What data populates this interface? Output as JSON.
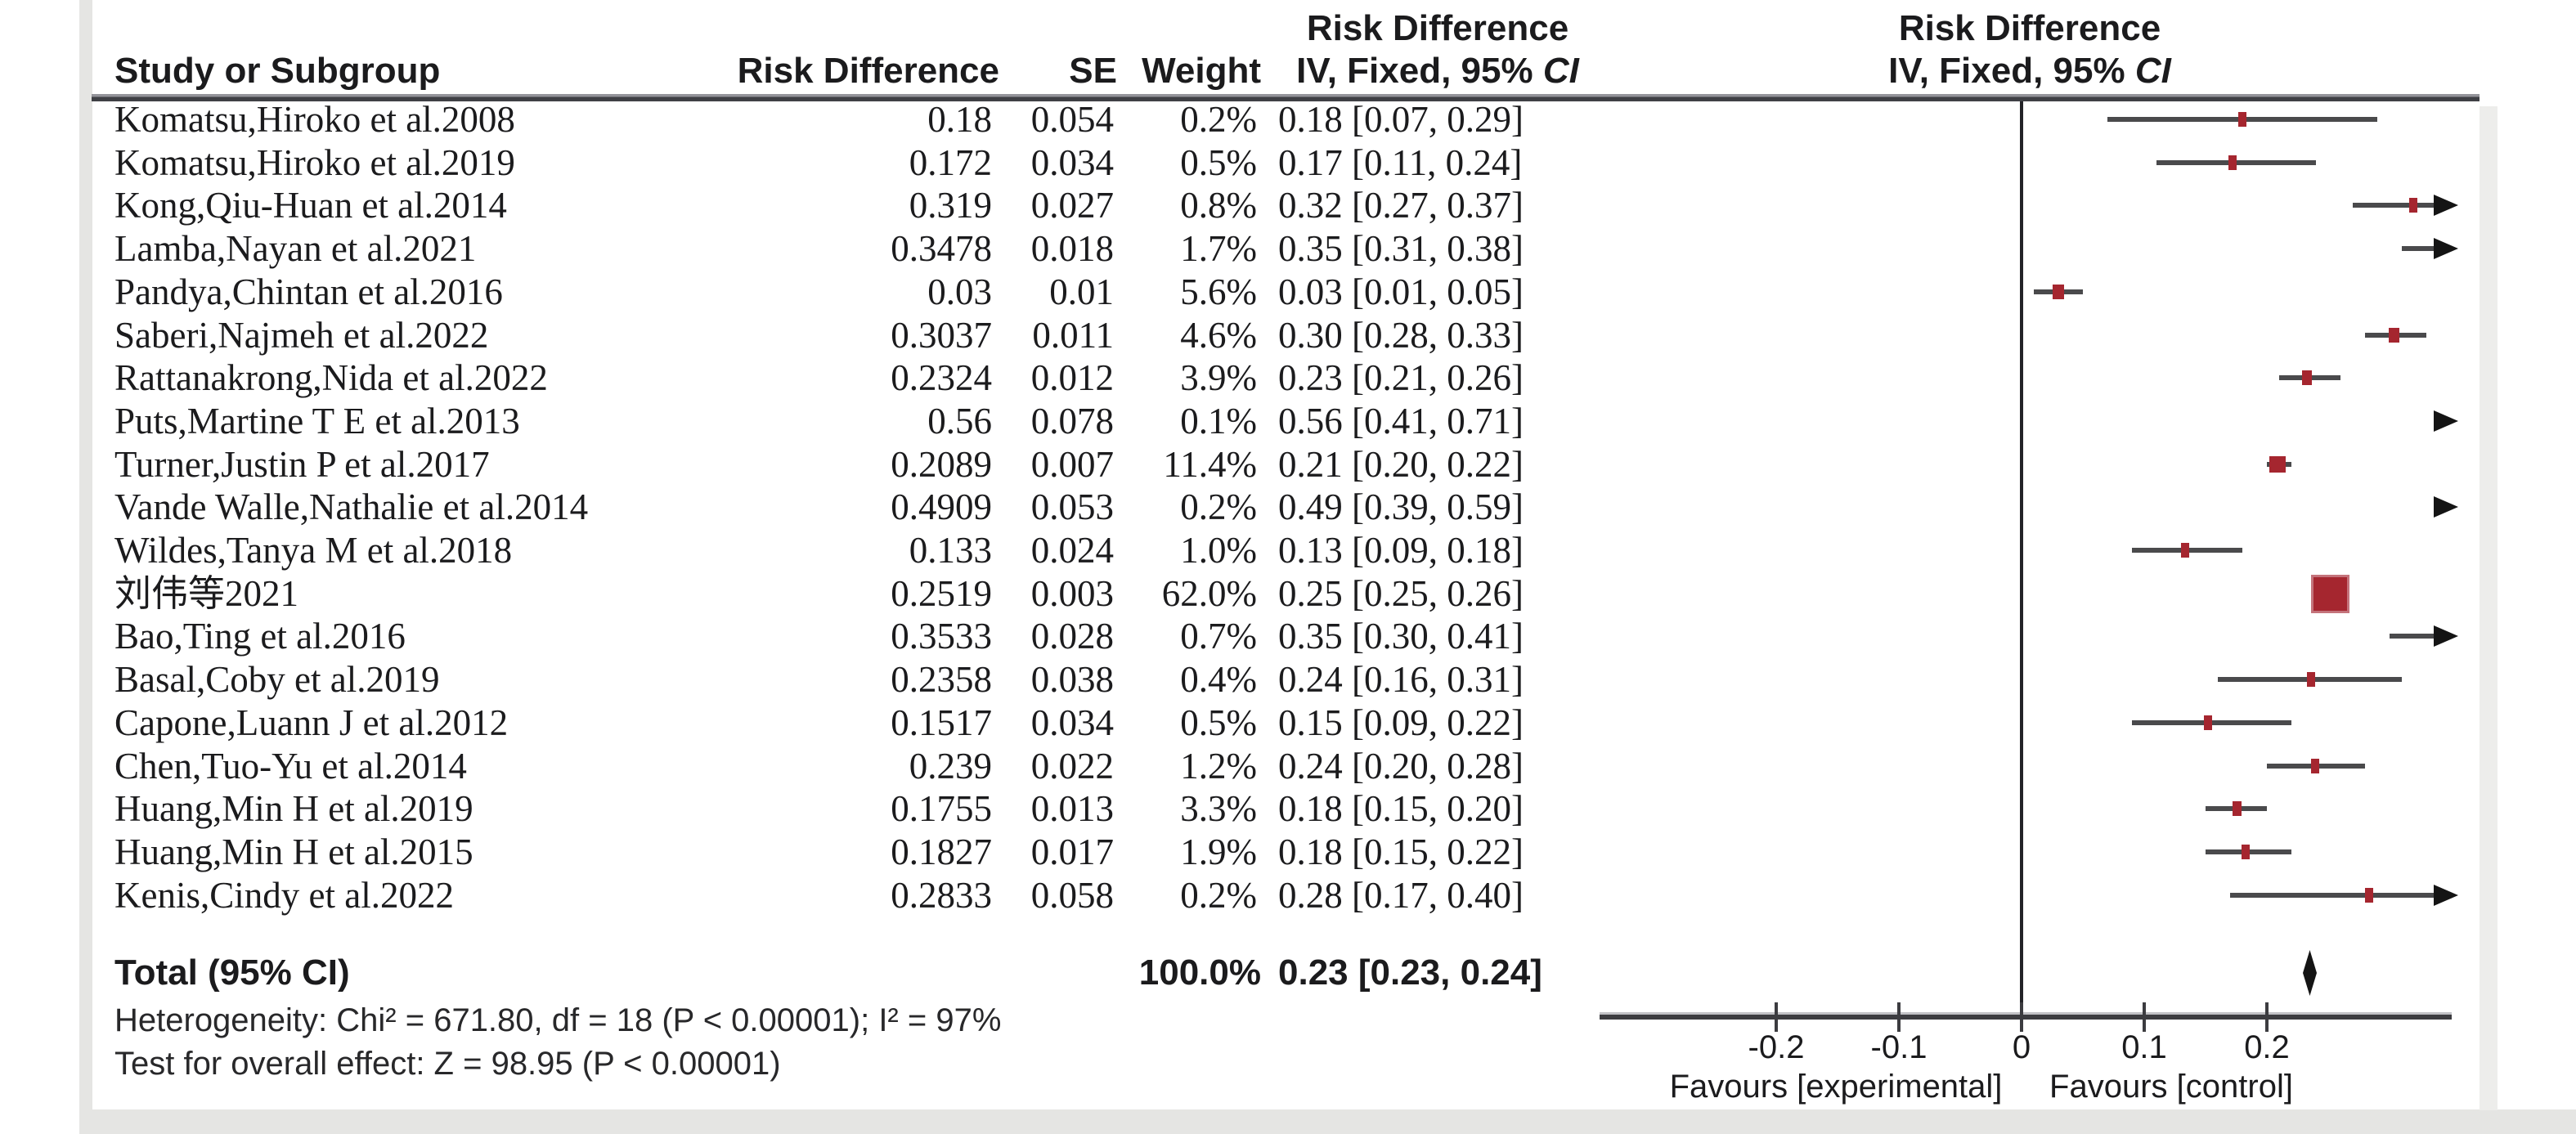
{
  "figure": {
    "columns": {
      "study": "Study or Subgroup",
      "risk_difference": "Risk Difference",
      "se": "SE",
      "weight": "Weight"
    },
    "effect_header": {
      "line1": "Risk Difference",
      "model_prefix": "IV, Fixed, 95% ",
      "ci": "CI"
    },
    "total_label": "Total (95% CI)",
    "heterogeneity": "Heterogeneity: Chi² = 671.80, df = 18 (P < 0.00001); I² = 97%",
    "overall_effect": "Test for overall effect: Z = 98.95 (P < 0.00001)",
    "favours_left": "Favours [experimental]",
    "favours_right": "Favours [control]"
  },
  "chart_data": {
    "type": "forest",
    "title": "Risk Difference, IV, Fixed, 95% CI",
    "x_axis": {
      "tick_values": [
        -0.2,
        -0.1,
        0,
        0.1,
        0.2
      ],
      "tick_labels": [
        "-0.2",
        "-0.1",
        "0",
        "0.1",
        "0.2"
      ],
      "visible_range": [
        -0.34,
        0.35
      ],
      "grid": false
    },
    "legend_position": "none",
    "studies": [
      {
        "label": "Komatsu,Hiroko et al.2008",
        "rd_text": "0.18",
        "se_text": "0.054",
        "weight_text": "0.2%",
        "ci_text": "0.18 [0.07, 0.29]",
        "weight": 0.2,
        "est": 0.18,
        "lo": 0.07,
        "hi": 0.29
      },
      {
        "label": "Komatsu,Hiroko et al.2019",
        "rd_text": "0.172",
        "se_text": "0.034",
        "weight_text": "0.5%",
        "ci_text": "0.17 [0.11, 0.24]",
        "weight": 0.5,
        "est": 0.172,
        "lo": 0.11,
        "hi": 0.24
      },
      {
        "label": "Kong,Qiu-Huan et al.2014",
        "rd_text": "0.319",
        "se_text": "0.027",
        "weight_text": "0.8%",
        "ci_text": "0.32 [0.27, 0.37]",
        "weight": 0.8,
        "est": 0.319,
        "lo": 0.27,
        "hi": 0.37
      },
      {
        "label": "Lamba,Nayan et al.2021",
        "rd_text": "0.3478",
        "se_text": "0.018",
        "weight_text": "1.7%",
        "ci_text": "0.35 [0.31, 0.38]",
        "weight": 1.7,
        "est": 0.3478,
        "lo": 0.31,
        "hi": 0.38
      },
      {
        "label": "Pandya,Chintan et al.2016",
        "rd_text": "0.03",
        "se_text": "0.01",
        "weight_text": "5.6%",
        "ci_text": "0.03 [0.01, 0.05]",
        "weight": 5.6,
        "est": 0.03,
        "lo": 0.01,
        "hi": 0.05
      },
      {
        "label": "Saberi,Najmeh et al.2022",
        "rd_text": "0.3037",
        "se_text": "0.011",
        "weight_text": "4.6%",
        "ci_text": "0.30 [0.28, 0.33]",
        "weight": 4.6,
        "est": 0.3037,
        "lo": 0.28,
        "hi": 0.33
      },
      {
        "label": "Rattanakrong,Nida et al.2022",
        "rd_text": "0.2324",
        "se_text": "0.012",
        "weight_text": "3.9%",
        "ci_text": "0.23 [0.21, 0.26]",
        "weight": 3.9,
        "est": 0.2324,
        "lo": 0.21,
        "hi": 0.26
      },
      {
        "label": "Puts,Martine T E et al.2013",
        "rd_text": "0.56",
        "se_text": "0.078",
        "weight_text": "0.1%",
        "ci_text": "0.56 [0.41, 0.71]",
        "weight": 0.1,
        "est": 0.56,
        "lo": 0.41,
        "hi": 0.71
      },
      {
        "label": "Turner,Justin P et al.2017",
        "rd_text": "0.2089",
        "se_text": "0.007",
        "weight_text": "11.4%",
        "ci_text": "0.21 [0.20, 0.22]",
        "weight": 11.4,
        "est": 0.2089,
        "lo": 0.2,
        "hi": 0.22
      },
      {
        "label": "Vande Walle,Nathalie et al.2014",
        "rd_text": "0.4909",
        "se_text": "0.053",
        "weight_text": "0.2%",
        "ci_text": "0.49 [0.39, 0.59]",
        "weight": 0.2,
        "est": 0.4909,
        "lo": 0.39,
        "hi": 0.59
      },
      {
        "label": "Wildes,Tanya M et al.2018",
        "rd_text": "0.133",
        "se_text": "0.024",
        "weight_text": "1.0%",
        "ci_text": "0.13 [0.09, 0.18]",
        "weight": 1.0,
        "est": 0.133,
        "lo": 0.09,
        "hi": 0.18
      },
      {
        "label": "刘伟等2021",
        "rd_text": "0.2519",
        "se_text": "0.003",
        "weight_text": "62.0%",
        "ci_text": "0.25 [0.25, 0.26]",
        "weight": 62.0,
        "est": 0.2519,
        "lo": 0.25,
        "hi": 0.26
      },
      {
        "label": "Bao,Ting et al.2016",
        "rd_text": "0.3533",
        "se_text": "0.028",
        "weight_text": "0.7%",
        "ci_text": "0.35 [0.30, 0.41]",
        "weight": 0.7,
        "est": 0.3533,
        "lo": 0.3,
        "hi": 0.41
      },
      {
        "label": "Basal,Coby et al.2019",
        "rd_text": "0.2358",
        "se_text": "0.038",
        "weight_text": "0.4%",
        "ci_text": "0.24 [0.16, 0.31]",
        "weight": 0.4,
        "est": 0.2358,
        "lo": 0.16,
        "hi": 0.31
      },
      {
        "label": "Capone,Luann J et al.2012",
        "rd_text": "0.1517",
        "se_text": "0.034",
        "weight_text": "0.5%",
        "ci_text": "0.15 [0.09, 0.22]",
        "weight": 0.5,
        "est": 0.1517,
        "lo": 0.09,
        "hi": 0.22
      },
      {
        "label": "Chen,Tuo-Yu et al.2014",
        "rd_text": "0.239",
        "se_text": "0.022",
        "weight_text": "1.2%",
        "ci_text": "0.24 [0.20, 0.28]",
        "weight": 1.2,
        "est": 0.239,
        "lo": 0.2,
        "hi": 0.28
      },
      {
        "label": "Huang,Min H et al.2019",
        "rd_text": "0.1755",
        "se_text": "0.013",
        "weight_text": "3.3%",
        "ci_text": "0.18 [0.15, 0.20]",
        "weight": 3.3,
        "est": 0.1755,
        "lo": 0.15,
        "hi": 0.2
      },
      {
        "label": "Huang,Min H et al.2015",
        "rd_text": "0.1827",
        "se_text": "0.017",
        "weight_text": "1.9%",
        "ci_text": "0.18 [0.15, 0.22]",
        "weight": 1.9,
        "est": 0.1827,
        "lo": 0.15,
        "hi": 0.22
      },
      {
        "label": "Kenis,Cindy et al.2022",
        "rd_text": "0.2833",
        "se_text": "0.058",
        "weight_text": "0.2%",
        "ci_text": "0.28 [0.17, 0.40]",
        "weight": 0.2,
        "est": 0.2833,
        "lo": 0.17,
        "hi": 0.4
      }
    ],
    "total": {
      "label": "Total (95% CI)",
      "weight_text": "100.0%",
      "ci_text": "0.23 [0.23, 0.24]",
      "est": 0.23,
      "lo": 0.23,
      "hi": 0.24
    },
    "heterogeneity": "Heterogeneity: Chi² = 671.80, df = 18 (P < 0.00001); I² = 97%",
    "overall_effect": "Test for overall effect: Z = 98.95 (P < 0.00001)",
    "favours_left": "Favours [experimental]",
    "favours_right": "Favours [control]",
    "colors": {
      "marker": "#a5262f",
      "diamond": "#141414",
      "ci_line": "#4a4a4c",
      "axis": "#3c3c40"
    }
  }
}
